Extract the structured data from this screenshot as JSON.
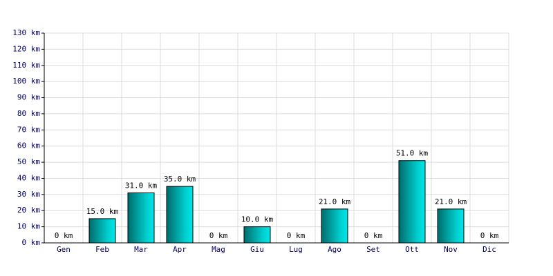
{
  "chart_data": {
    "type": "bar",
    "categories": [
      "Gen",
      "Feb",
      "Mar",
      "Apr",
      "Mag",
      "Giu",
      "Lug",
      "Ago",
      "Set",
      "Ott",
      "Nov",
      "Dic"
    ],
    "values": [
      0,
      15,
      31,
      35,
      0,
      10,
      0,
      21,
      0,
      51,
      21,
      0
    ],
    "value_labels": [
      "0 km",
      "15.0 km",
      "31.0 km",
      "35.0 km",
      "0 km",
      "10.0 km",
      "0 km",
      "21.0 km",
      "0 km",
      "51.0 km",
      "21.0 km",
      "0 km"
    ],
    "color": "#00cccc",
    "ylim": [
      0,
      130
    ],
    "yticks": [
      {
        "value": 0,
        "label": "0 km"
      },
      {
        "value": 10,
        "label": "10 km"
      },
      {
        "value": 20,
        "label": "20 km"
      },
      {
        "value": 30,
        "label": "30 km"
      },
      {
        "value": 40,
        "label": "40 km"
      },
      {
        "value": 50,
        "label": "50 km"
      },
      {
        "value": 60,
        "label": "60 km"
      },
      {
        "value": 70,
        "label": "70 km"
      },
      {
        "value": 80,
        "label": "80 km"
      },
      {
        "value": 90,
        "label": "90 km"
      },
      {
        "value": 100,
        "label": "100 km"
      },
      {
        "value": 110,
        "label": "110 km"
      },
      {
        "value": 120,
        "label": "120 km"
      },
      {
        "value": 130,
        "label": "130 km"
      }
    ],
    "grid": true
  }
}
